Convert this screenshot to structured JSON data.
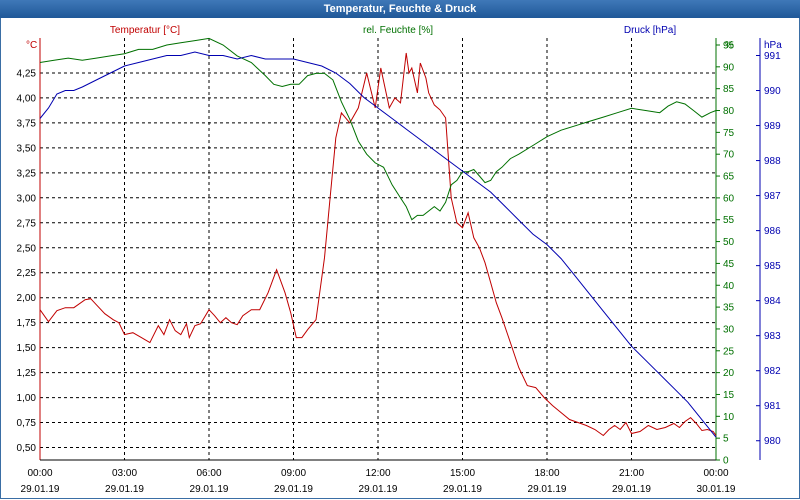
{
  "window": {
    "title": "Temperatur, Feuchte & Druck"
  },
  "colors": {
    "temperature": "#c00000",
    "humidity": "#007000",
    "pressure": "#0000b0",
    "grid": "#000000",
    "axis": "#000000"
  },
  "chart_data": {
    "type": "line",
    "title": "Temperatur, Feuchte & Druck",
    "grid": true,
    "x_ticks": [
      {
        "time": "00:00",
        "date": "29.01.19"
      },
      {
        "time": "03:00",
        "date": "29.01.19"
      },
      {
        "time": "06:00",
        "date": "29.01.19"
      },
      {
        "time": "09:00",
        "date": "29.01.19"
      },
      {
        "time": "12:00",
        "date": "29.01.19"
      },
      {
        "time": "15:00",
        "date": "29.01.19"
      },
      {
        "time": "18:00",
        "date": "29.01.19"
      },
      {
        "time": "21:00",
        "date": "29.01.19"
      },
      {
        "time": "00:00",
        "date": "30.01.19"
      }
    ],
    "xlim_hours": [
      0,
      24
    ],
    "axes": {
      "left": {
        "label": "Temperatur [°C]",
        "unit": "°C",
        "range": [
          0.375,
          4.6
        ],
        "ticks": [
          "0,50",
          "0,75",
          "1,00",
          "1,25",
          "1,50",
          "1,75",
          "2,00",
          "2,25",
          "2,50",
          "2,75",
          "3,00",
          "3,25",
          "3,50",
          "3,75",
          "4,00",
          "4,25"
        ]
      },
      "right1": {
        "label": "rel. Feuchte [%]",
        "unit": "%",
        "range": [
          0,
          96.6
        ],
        "ticks": [
          "0",
          "5",
          "10",
          "15",
          "20",
          "25",
          "30",
          "35",
          "40",
          "45",
          "50",
          "55",
          "60",
          "65",
          "70",
          "75",
          "80",
          "85",
          "90",
          "95"
        ]
      },
      "right2": {
        "label": "Druck [hPa]",
        "unit": "hPa",
        "range": [
          979.45,
          991.5
        ],
        "ticks": [
          "980",
          "981",
          "982",
          "983",
          "984",
          "985",
          "986",
          "987",
          "988",
          "989",
          "990",
          "991"
        ]
      }
    },
    "series": [
      {
        "name": "Temperatur [°C]",
        "axis": "left",
        "x": [
          0,
          0.3,
          0.6,
          0.9,
          1.2,
          1.6,
          1.8,
          2.0,
          2.3,
          2.6,
          2.8,
          3.0,
          3.3,
          3.6,
          3.9,
          4.2,
          4.4,
          4.6,
          4.8,
          5.0,
          5.2,
          5.3,
          5.5,
          5.7,
          6.0,
          6.2,
          6.4,
          6.6,
          6.8,
          7.0,
          7.2,
          7.5,
          7.8,
          8.1,
          8.4,
          8.7,
          8.9,
          9.1,
          9.3,
          9.5,
          9.8,
          10.1,
          10.3,
          10.5,
          10.7,
          11.0,
          11.3,
          11.6,
          11.9,
          12.1,
          12.4,
          12.6,
          12.8,
          13.0,
          13.1,
          13.2,
          13.4,
          13.5,
          13.7,
          13.8,
          14.0,
          14.2,
          14.4,
          14.6,
          14.8,
          15.0,
          15.2,
          15.4,
          15.6,
          15.8,
          16.0,
          16.2,
          16.4,
          16.7,
          17.0,
          17.3,
          17.6,
          17.9,
          18.2,
          18.5,
          18.8,
          19.1,
          19.4,
          19.7,
          20.0,
          20.2,
          20.4,
          20.6,
          20.8,
          21.0,
          21.3,
          21.6,
          21.9,
          22.2,
          22.5,
          22.7,
          22.9,
          23.1,
          23.3,
          23.5,
          23.7,
          23.9,
          24.0
        ],
        "values": [
          1.88,
          1.76,
          1.87,
          1.9,
          1.9,
          1.98,
          1.99,
          1.93,
          1.84,
          1.78,
          1.75,
          1.63,
          1.65,
          1.6,
          1.55,
          1.72,
          1.63,
          1.78,
          1.67,
          1.63,
          1.74,
          1.6,
          1.72,
          1.74,
          1.88,
          1.82,
          1.75,
          1.8,
          1.75,
          1.73,
          1.82,
          1.88,
          1.88,
          2.05,
          2.28,
          2.05,
          1.85,
          1.6,
          1.6,
          1.68,
          1.78,
          2.4,
          3.0,
          3.6,
          3.85,
          3.75,
          3.9,
          4.25,
          3.9,
          4.3,
          3.9,
          4.0,
          3.95,
          4.45,
          4.25,
          4.3,
          4.05,
          4.35,
          4.2,
          4.05,
          3.93,
          3.88,
          3.8,
          3.0,
          2.75,
          2.7,
          2.85,
          2.6,
          2.5,
          2.35,
          2.15,
          1.95,
          1.8,
          1.55,
          1.3,
          1.12,
          1.1,
          1.0,
          0.92,
          0.85,
          0.78,
          0.75,
          0.72,
          0.68,
          0.62,
          0.68,
          0.72,
          0.68,
          0.75,
          0.64,
          0.66,
          0.72,
          0.68,
          0.7,
          0.74,
          0.7,
          0.76,
          0.8,
          0.74,
          0.67,
          0.68,
          0.66,
          0.62
        ]
      },
      {
        "name": "rel. Feuchte [%]",
        "axis": "right1",
        "x": [
          0,
          0.5,
          1.0,
          1.5,
          2.0,
          2.5,
          3.0,
          3.5,
          4.0,
          4.5,
          5.0,
          5.5,
          6.0,
          6.5,
          7.0,
          7.5,
          8.0,
          8.3,
          8.6,
          8.9,
          9.2,
          9.5,
          9.8,
          10.1,
          10.4,
          10.7,
          11.0,
          11.3,
          11.6,
          11.9,
          12.2,
          12.5,
          12.8,
          13.0,
          13.2,
          13.4,
          13.6,
          13.8,
          14.0,
          14.2,
          14.4,
          14.6,
          14.8,
          15.0,
          15.2,
          15.4,
          15.6,
          15.8,
          16.0,
          16.2,
          16.4,
          16.7,
          17.0,
          17.5,
          18.0,
          18.5,
          19.0,
          19.5,
          20.0,
          20.5,
          21.0,
          21.5,
          22.0,
          22.3,
          22.6,
          22.9,
          23.2,
          23.5,
          23.8,
          24.0
        ],
        "values": [
          91,
          91.5,
          92,
          91.5,
          92,
          92.5,
          93,
          94,
          94,
          95,
          95.5,
          96,
          96.5,
          95,
          92.5,
          91,
          88,
          86,
          85.5,
          86,
          86,
          88,
          88.5,
          88.5,
          87,
          82,
          78,
          73,
          70,
          68,
          67,
          63,
          60,
          58,
          55,
          56,
          56,
          57,
          58,
          57,
          59,
          63,
          64,
          66,
          66,
          66.5,
          65,
          63.5,
          64,
          66,
          67,
          69,
          70,
          72,
          74,
          75.5,
          76.5,
          77.5,
          78.5,
          79.5,
          80.5,
          80,
          79.5,
          81,
          82,
          81.5,
          80,
          78.5,
          79.5,
          80
        ]
      },
      {
        "name": "Druck [hPa]",
        "axis": "right2",
        "x": [
          0,
          0.3,
          0.6,
          0.9,
          1.2,
          1.5,
          2.0,
          2.5,
          3.0,
          3.5,
          4.0,
          4.5,
          5.0,
          5.5,
          6.0,
          6.5,
          7.0,
          7.5,
          8.0,
          8.5,
          9.0,
          9.5,
          10.0,
          10.5,
          11.0,
          11.5,
          12.0,
          12.5,
          13.0,
          13.5,
          14.0,
          14.5,
          15.0,
          15.5,
          16.0,
          16.5,
          17.0,
          17.5,
          18.0,
          18.5,
          19.0,
          19.5,
          20.0,
          20.5,
          21.0,
          21.5,
          22.0,
          22.5,
          23.0,
          23.5,
          24.0
        ],
        "values": [
          989.2,
          989.5,
          989.9,
          990.0,
          990.0,
          990.1,
          990.3,
          990.5,
          990.7,
          990.8,
          990.9,
          991.0,
          991.0,
          991.1,
          991.0,
          991.0,
          990.9,
          991.0,
          990.9,
          990.9,
          990.9,
          990.8,
          990.7,
          990.5,
          990.2,
          989.8,
          989.5,
          989.2,
          988.9,
          988.6,
          988.3,
          988.0,
          987.7,
          987.4,
          987.1,
          986.7,
          986.3,
          985.9,
          985.6,
          985.2,
          984.7,
          984.2,
          983.7,
          983.2,
          982.7,
          982.3,
          981.9,
          981.5,
          981.1,
          980.6,
          980.1
        ]
      }
    ]
  }
}
